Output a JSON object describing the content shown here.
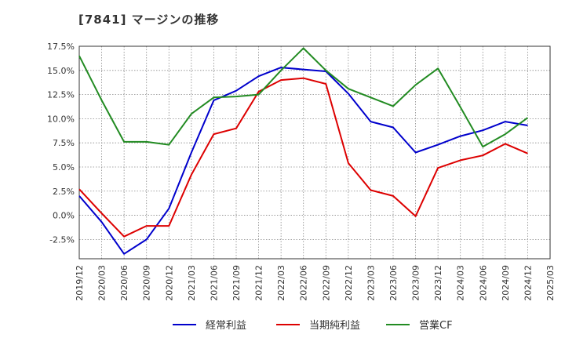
{
  "chart_data": {
    "type": "line",
    "title": "[7841]  マージンの推移",
    "x": [
      "2019/12",
      "2020/03",
      "2020/06",
      "2020/09",
      "2020/12",
      "2021/03",
      "2021/06",
      "2021/09",
      "2021/12",
      "2022/03",
      "2022/06",
      "2022/09",
      "2022/12",
      "2023/03",
      "2023/06",
      "2023/09",
      "2023/12",
      "2024/03",
      "2024/06",
      "2024/09",
      "2024/12",
      "2025/03"
    ],
    "y_ticks": [
      "17.5%",
      "15.0%",
      "12.5%",
      "10.0%",
      "7.5%",
      "5.0%",
      "2.5%",
      "0.0%",
      "-2.5%"
    ],
    "y_tick_values": [
      17.5,
      15.0,
      12.5,
      10.0,
      7.5,
      5.0,
      2.5,
      0.0,
      -2.5
    ],
    "ylim": [
      -4.5,
      17.5
    ],
    "grid": true,
    "legend_position": "bottom",
    "series": [
      {
        "name": "経常利益",
        "color": "#0000cc",
        "values": [
          2.0,
          -0.7,
          -4.0,
          -2.5,
          0.7,
          6.5,
          11.9,
          12.9,
          14.4,
          15.3,
          15.1,
          14.9,
          12.6,
          9.7,
          9.1,
          6.5,
          7.3,
          8.2,
          8.8,
          9.7,
          9.3,
          null
        ]
      },
      {
        "name": "当期純利益",
        "color": "#dd0000",
        "values": [
          2.7,
          0.2,
          -2.2,
          -1.1,
          -1.1,
          4.2,
          8.4,
          9.0,
          12.8,
          14.0,
          14.2,
          13.6,
          5.4,
          2.6,
          2.0,
          -0.1,
          4.9,
          5.7,
          6.2,
          7.4,
          6.4,
          null
        ]
      },
      {
        "name": "営業CF",
        "color": "#228b22",
        "values": [
          16.5,
          11.9,
          7.6,
          7.6,
          7.3,
          10.5,
          12.2,
          12.3,
          12.5,
          15.0,
          17.3,
          15.0,
          13.1,
          12.2,
          11.3,
          13.5,
          15.2,
          11.2,
          7.1,
          8.4,
          10.1,
          null
        ]
      }
    ]
  }
}
